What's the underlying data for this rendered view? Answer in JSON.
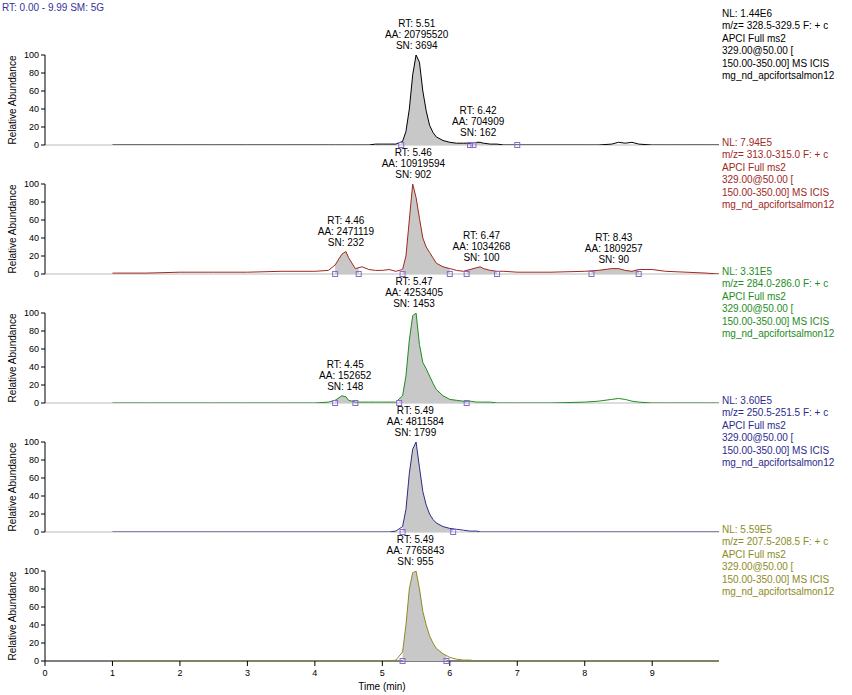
{
  "header": "RT: 0.00 - 9.99 SM: 5G",
  "chart_data": [
    {
      "type": "line",
      "color": "#000000",
      "ylabel": "Relative Abundance",
      "xlim": [
        0,
        9.99
      ],
      "ylim": [
        0,
        100
      ],
      "yticks": [
        0,
        20,
        40,
        60,
        80,
        100
      ],
      "tick_labels": "y",
      "x": [
        1.0,
        1.5,
        2.0,
        2.5,
        3.0,
        3.5,
        4.0,
        4.2,
        4.3,
        4.4,
        4.46,
        4.5,
        4.6,
        4.7,
        4.8,
        4.9,
        5.0,
        5.1,
        5.2,
        5.3,
        5.35,
        5.4,
        5.45,
        5.5,
        5.55,
        5.6,
        5.65,
        5.7,
        5.75,
        5.8,
        5.9,
        6.0,
        6.1,
        6.2,
        6.3,
        6.4,
        6.45,
        6.5,
        6.6,
        6.7,
        6.8,
        7.0,
        7.5,
        8.0,
        8.2,
        8.4,
        8.5,
        8.6,
        8.7,
        8.8,
        9.0,
        9.2,
        9.5,
        9.8,
        9.99
      ],
      "values": [
        0,
        0,
        0,
        0,
        0,
        0,
        0,
        0,
        0,
        0,
        0,
        0,
        0,
        0,
        0,
        1,
        1,
        1,
        1,
        4,
        15,
        40,
        78,
        100,
        92,
        60,
        38,
        22,
        14,
        9,
        5,
        3,
        2,
        2,
        2,
        3,
        3,
        2,
        1,
        1,
        0,
        0,
        0,
        0,
        0,
        1,
        3,
        2,
        3,
        1,
        0,
        0,
        0,
        0,
        0
      ],
      "info": [
        "NL: 1.44E6",
        "m/z= 328.5-329.5 F: + c",
        "APCI Full ms2",
        "329.00@50.00 [",
        "150.00-350.00] MS ICIS",
        "mg_nd_apcifortsalmon12"
      ],
      "annotations": [
        {
          "x": 5.51,
          "y": 100,
          "start": 5.28,
          "end": 6.3,
          "text": [
            "RT: 5.51",
            "AA: 20795520",
            "SN: 3694"
          ]
        },
        {
          "x": 6.42,
          "y": 3,
          "start": 6.35,
          "end": 7.0,
          "text": [
            "RT: 6.42",
            "AA: 704909",
            "SN: 162"
          ]
        }
      ]
    },
    {
      "type": "line",
      "color": "#a0281e",
      "ylabel": "Relative Abundance",
      "xlim": [
        0,
        9.99
      ],
      "ylim": [
        0,
        100
      ],
      "yticks": [
        0,
        20,
        40,
        60,
        80,
        100
      ],
      "tick_labels": "y",
      "x": [
        1.0,
        1.5,
        2.0,
        2.5,
        3.0,
        3.5,
        4.0,
        4.2,
        4.3,
        4.4,
        4.46,
        4.5,
        4.6,
        4.7,
        4.8,
        4.9,
        5.0,
        5.1,
        5.2,
        5.3,
        5.35,
        5.4,
        5.45,
        5.5,
        5.55,
        5.6,
        5.65,
        5.7,
        5.75,
        5.8,
        5.9,
        6.0,
        6.1,
        6.2,
        6.3,
        6.4,
        6.45,
        6.5,
        6.6,
        6.7,
        6.8,
        7.0,
        7.5,
        8.0,
        8.2,
        8.4,
        8.5,
        8.6,
        8.7,
        8.8,
        9.0,
        9.2,
        9.5,
        9.8,
        9.99
      ],
      "values": [
        1,
        1,
        2,
        2,
        2,
        3,
        3,
        4,
        10,
        22,
        25,
        18,
        6,
        8,
        5,
        4,
        4,
        5,
        3,
        5,
        20,
        60,
        100,
        85,
        62,
        40,
        30,
        24,
        18,
        12,
        8,
        6,
        4,
        3,
        5,
        7,
        8,
        6,
        4,
        3,
        3,
        2,
        2,
        3,
        4,
        6,
        6,
        4,
        3,
        5,
        5,
        3,
        2,
        1,
        0
      ],
      "info": [
        "NL: 7.94E5",
        "m/z= 313.0-315.0 F: + c",
        "APCI Full ms2",
        "329.00@50.00 [",
        "150.00-350.00] MS ICIS",
        "mg_nd_apcifortsalmon12"
      ],
      "annotations": [
        {
          "x": 4.46,
          "y": 25,
          "start": 4.3,
          "end": 4.65,
          "text": [
            "RT: 4.46",
            "AA: 2471119",
            "SN: 232"
          ]
        },
        {
          "x": 5.46,
          "y": 100,
          "start": 5.3,
          "end": 6.0,
          "text": [
            "RT: 5.46",
            "AA: 10919594",
            "SN: 902"
          ]
        },
        {
          "x": 6.47,
          "y": 8,
          "start": 6.25,
          "end": 6.7,
          "text": [
            "RT: 6.47",
            "AA: 1034268",
            "SN: 100"
          ]
        },
        {
          "x": 8.43,
          "y": 6,
          "start": 8.1,
          "end": 8.8,
          "text": [
            "RT: 8.43",
            "AA: 1809257",
            "SN: 90"
          ]
        }
      ]
    },
    {
      "type": "line",
      "color": "#1e8c1e",
      "ylabel": "Relative Abundance",
      "xlim": [
        0,
        9.99
      ],
      "ylim": [
        0,
        100
      ],
      "yticks": [
        0,
        20,
        40,
        60,
        80,
        100
      ],
      "tick_labels": "y",
      "x": [
        1.0,
        1.5,
        2.0,
        2.5,
        3.0,
        3.5,
        4.0,
        4.2,
        4.3,
        4.4,
        4.46,
        4.5,
        4.6,
        4.7,
        4.8,
        4.9,
        5.0,
        5.1,
        5.2,
        5.3,
        5.35,
        5.4,
        5.45,
        5.5,
        5.55,
        5.6,
        5.65,
        5.7,
        5.75,
        5.8,
        5.9,
        6.0,
        6.1,
        6.2,
        6.3,
        6.4,
        6.45,
        6.5,
        6.6,
        6.7,
        6.8,
        7.0,
        7.5,
        8.0,
        8.2,
        8.4,
        8.5,
        8.6,
        8.7,
        8.8,
        9.0,
        9.2,
        9.5,
        9.8,
        9.99
      ],
      "values": [
        0,
        0,
        0,
        0,
        0,
        0,
        0,
        1,
        3,
        8,
        7,
        3,
        1,
        1,
        1,
        1,
        1,
        1,
        1,
        8,
        30,
        70,
        97,
        100,
        65,
        45,
        38,
        30,
        22,
        15,
        8,
        4,
        3,
        2,
        2,
        1,
        1,
        1,
        1,
        0,
        0,
        0,
        0,
        1,
        2,
        4,
        5,
        4,
        2,
        1,
        0,
        0,
        0,
        0,
        0
      ],
      "info": [
        "NL: 3.31E5",
        "m/z= 284.0-286.0 F: + c",
        "APCI Full ms2",
        "329.00@50.00 [",
        "150.00-350.00] MS ICIS",
        "mg_nd_apcifortsalmon12"
      ],
      "annotations": [
        {
          "x": 4.45,
          "y": 8,
          "start": 4.3,
          "end": 4.6,
          "text": [
            "RT: 4.45",
            "AA: 152652",
            "SN: 148"
          ]
        },
        {
          "x": 5.47,
          "y": 100,
          "start": 5.25,
          "end": 6.25,
          "text": [
            "RT: 5.47",
            "AA: 4253405",
            "SN: 1453"
          ]
        }
      ]
    },
    {
      "type": "line",
      "color": "#2b2b8c",
      "ylabel": "Relative Abundance",
      "xlim": [
        0,
        9.99
      ],
      "ylim": [
        0,
        100
      ],
      "yticks": [
        0,
        20,
        40,
        60,
        80,
        100
      ],
      "tick_labels": "y",
      "x": [
        1.0,
        1.5,
        2.0,
        2.5,
        3.0,
        3.5,
        4.0,
        4.2,
        4.3,
        4.4,
        4.46,
        4.5,
        4.6,
        4.7,
        4.8,
        4.9,
        5.0,
        5.1,
        5.2,
        5.3,
        5.35,
        5.4,
        5.45,
        5.5,
        5.55,
        5.6,
        5.65,
        5.7,
        5.75,
        5.8,
        5.9,
        6.0,
        6.1,
        6.2,
        6.3,
        6.4,
        6.45,
        6.5,
        6.6,
        6.7,
        6.8,
        7.0,
        7.5,
        8.0,
        8.2,
        8.4,
        8.5,
        8.6,
        8.7,
        8.8,
        9.0,
        9.2,
        9.5,
        9.8,
        9.99
      ],
      "values": [
        0,
        0,
        0,
        0,
        0,
        0,
        0,
        0,
        0,
        0,
        0,
        0,
        0,
        0,
        0,
        0,
        0,
        0,
        1,
        6,
        25,
        65,
        92,
        100,
        72,
        45,
        30,
        20,
        14,
        10,
        6,
        4,
        3,
        2,
        1,
        1,
        0,
        0,
        0,
        0,
        0,
        0,
        0,
        0,
        0,
        0,
        0,
        0,
        0,
        0,
        0,
        0,
        0,
        0,
        0
      ],
      "info": [
        "NL: 3.60E5",
        "m/z= 250.5-251.5 F: + c",
        "APCI Full ms2",
        "329.00@50.00 [",
        "150.00-350.00] MS ICIS",
        "mg_nd_apcifortsalmon12"
      ],
      "annotations": [
        {
          "x": 5.49,
          "y": 100,
          "start": 5.3,
          "end": 6.05,
          "text": [
            "RT: 5.49",
            "AA: 4811584",
            "SN: 1799"
          ]
        }
      ]
    },
    {
      "type": "line",
      "color": "#8c8c1e",
      "ylabel": "Relative Abundance",
      "xlabel": "Time (min)",
      "xlim": [
        0,
        9.99
      ],
      "ylim": [
        0,
        100
      ],
      "xticks": [
        0,
        1,
        2,
        3,
        4,
        5,
        6,
        7,
        8,
        9
      ],
      "yticks": [
        0,
        20,
        40,
        60,
        80,
        100
      ],
      "x": [
        1.0,
        1.5,
        2.0,
        2.5,
        3.0,
        3.5,
        4.0,
        4.2,
        4.3,
        4.4,
        4.46,
        4.5,
        4.6,
        4.7,
        4.8,
        4.9,
        5.0,
        5.1,
        5.2,
        5.3,
        5.35,
        5.4,
        5.45,
        5.5,
        5.55,
        5.6,
        5.65,
        5.7,
        5.75,
        5.8,
        5.9,
        6.0,
        6.1,
        6.2,
        6.3,
        6.4,
        6.45,
        6.5,
        6.6,
        6.7,
        6.8,
        7.0,
        7.5,
        8.0,
        8.2,
        8.4,
        8.5,
        8.6,
        8.7,
        8.8,
        9.0,
        9.2,
        9.5,
        9.8,
        9.99
      ],
      "values": [
        0,
        0,
        0,
        0,
        0,
        0,
        0,
        0,
        0,
        0,
        0,
        0,
        0,
        0,
        0,
        0,
        0,
        0,
        1,
        10,
        40,
        80,
        98,
        100,
        80,
        55,
        40,
        28,
        20,
        14,
        8,
        4,
        2,
        1,
        1,
        0,
        0,
        0,
        0,
        0,
        0,
        0,
        0,
        0,
        0,
        0,
        0,
        0,
        0,
        0,
        0,
        0,
        0,
        0,
        0
      ],
      "info": [
        "NL: 5.59E5",
        "m/z= 207.5-208.5 F: + c",
        "APCI Full ms2",
        "329.00@50.00 [",
        "150.00-350.00] MS ICIS",
        "mg_nd_apcifortsalmon12"
      ],
      "annotations": [
        {
          "x": 5.49,
          "y": 100,
          "start": 5.3,
          "end": 5.95,
          "text": [
            "RT: 5.49",
            "AA: 7765843",
            "SN: 955"
          ]
        }
      ]
    }
  ]
}
